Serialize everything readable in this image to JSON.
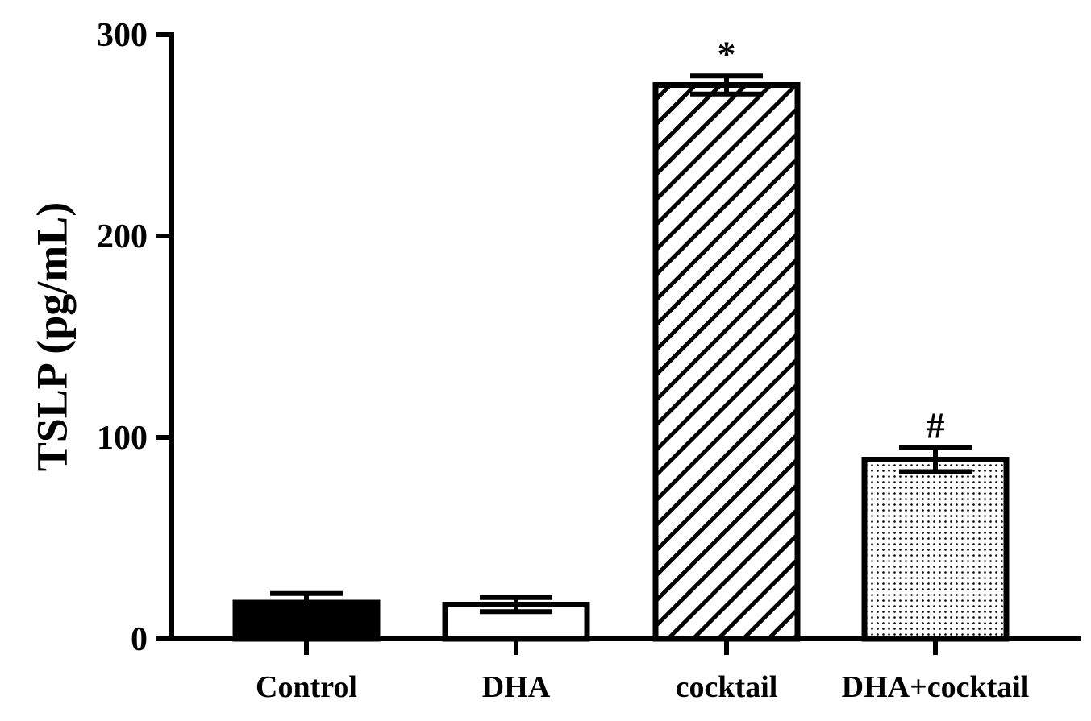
{
  "chart_data": {
    "type": "bar",
    "y_label": "TSLP (pg/mL)",
    "categories": [
      "Control",
      "DHA",
      "cocktail",
      "DHA+cocktail"
    ],
    "values": [
      18,
      17,
      275,
      89
    ],
    "errors": [
      4.5,
      3.5,
      4.5,
      6
    ],
    "patterns": [
      "solid",
      "open",
      "hatch",
      "dots"
    ],
    "annotations": [
      null,
      null,
      "*",
      "#"
    ],
    "color": "#000000",
    "ylim": [
      0,
      300
    ],
    "yticks": [
      0,
      100,
      200,
      300
    ]
  }
}
